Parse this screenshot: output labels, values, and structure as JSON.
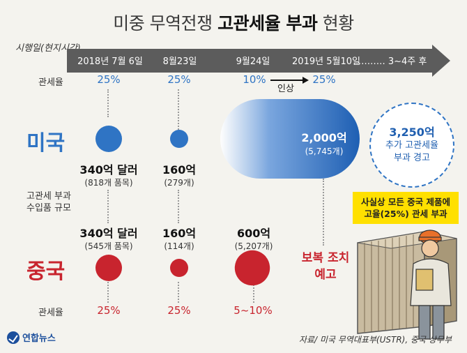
{
  "title": {
    "light": "미중 무역전쟁",
    "bold": "고관세율 부과",
    "tail": "현황"
  },
  "axis_label": "시행일(현지시간)",
  "timeline": [
    "2018년 7월 6일",
    "8월23일",
    "9월24일",
    "2019년 5월10일",
    "……… 3~4주 후"
  ],
  "row_labels": {
    "us_rate": "관세율",
    "cn_rate": "관세율",
    "scale_line1": "고관세 부과",
    "scale_line2": "수입품 규모"
  },
  "countries": {
    "us": "미국",
    "cn": "중국"
  },
  "raise_label": "인상",
  "warning": {
    "line1": "3,250억",
    "line2": "추가 고관세율",
    "line3": "부과 경고"
  },
  "note": {
    "line1": "사실상 모든 중국 제품에",
    "line2": "고율(25%) 관세 부과"
  },
  "retaliation": {
    "line1": "보복 조치",
    "line2": "예고"
  },
  "source": "자료/ 미국 무역대표부(USTR), 중국 상무부",
  "logo": "연합뉴스",
  "colors": {
    "us": "#2f74c4",
    "cn": "#c8242e",
    "arrow": "#5c5c5c",
    "note_bg": "#ffe000"
  },
  "chart_data": {
    "type": "bubble-timeline",
    "title": "미중 무역전쟁 고관세율 부과 현황",
    "categories": [
      "2018년 7월 6일",
      "8월23일",
      "9월24일",
      "2019년 5월10일"
    ],
    "series": [
      {
        "name": "미국",
        "tariff_rates": [
          "25%",
          "25%",
          "10%",
          "25%"
        ],
        "values": [
          340,
          160,
          2000
        ],
        "value_labels": [
          "340억 달러",
          "160억",
          "2,000억"
        ],
        "items": [
          "(818개 품목)",
          "(279개)",
          "(5,745개)"
        ],
        "unit": "억 달러"
      },
      {
        "name": "중국",
        "tariff_rates": [
          "25%",
          "25%",
          "5~10%"
        ],
        "values": [
          340,
          160,
          600
        ],
        "value_labels": [
          "340억 달러",
          "160억",
          "600억"
        ],
        "items": [
          "(545개 품목)",
          "(114개)",
          "(5,207개)"
        ],
        "unit": "억 달러"
      }
    ]
  }
}
